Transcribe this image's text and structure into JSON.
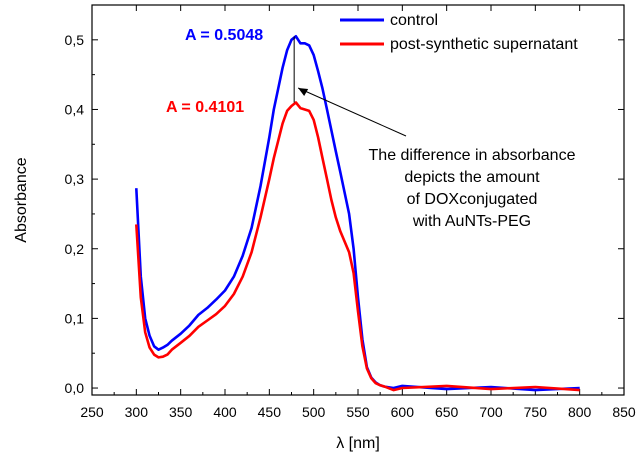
{
  "chart_data": {
    "type": "line",
    "xlabel": "λ [nm]",
    "ylabel": "Absorbance",
    "xlim": [
      250,
      850
    ],
    "ylim": [
      -0.01,
      0.55
    ],
    "xticks": [
      250,
      300,
      350,
      400,
      450,
      500,
      550,
      600,
      650,
      700,
      750,
      800,
      850
    ],
    "yticks": [
      0.0,
      0.1,
      0.2,
      0.3,
      0.4,
      0.5
    ],
    "ytick_labels": [
      "0,0",
      "0,1",
      "0,2",
      "0,3",
      "0,4",
      "0,5"
    ],
    "legend_position": "top-right",
    "series": [
      {
        "name": "control",
        "color": "#0000ff",
        "x": [
          300,
          305,
          310,
          315,
          320,
          325,
          330,
          335,
          340,
          350,
          360,
          370,
          380,
          390,
          400,
          410,
          420,
          430,
          440,
          450,
          455,
          460,
          465,
          470,
          475,
          480,
          485,
          490,
          495,
          500,
          505,
          510,
          515,
          520,
          525,
          530,
          535,
          540,
          545,
          550,
          555,
          560,
          565,
          570,
          575,
          580,
          590,
          600,
          650,
          700,
          750,
          800
        ],
        "y": [
          0.287,
          0.16,
          0.1,
          0.075,
          0.06,
          0.055,
          0.058,
          0.062,
          0.068,
          0.078,
          0.09,
          0.105,
          0.115,
          0.127,
          0.14,
          0.16,
          0.19,
          0.23,
          0.29,
          0.36,
          0.4,
          0.43,
          0.46,
          0.485,
          0.5,
          0.505,
          0.495,
          0.495,
          0.492,
          0.478,
          0.455,
          0.43,
          0.4,
          0.37,
          0.34,
          0.31,
          0.28,
          0.25,
          0.2,
          0.13,
          0.07,
          0.03,
          0.015,
          0.008,
          0.004,
          0.002,
          0.0,
          0.0,
          0.0,
          0.0,
          0.0,
          0.0
        ]
      },
      {
        "name": "post-synthetic supernatant",
        "color": "#ff0000",
        "x": [
          300,
          305,
          310,
          315,
          320,
          325,
          330,
          335,
          340,
          350,
          360,
          370,
          380,
          390,
          400,
          410,
          420,
          430,
          440,
          450,
          455,
          460,
          465,
          470,
          475,
          480,
          485,
          490,
          495,
          500,
          505,
          510,
          515,
          520,
          525,
          530,
          535,
          540,
          545,
          550,
          555,
          560,
          565,
          570,
          575,
          580,
          590,
          600,
          650,
          700,
          750,
          800
        ],
        "y": [
          0.235,
          0.13,
          0.08,
          0.058,
          0.048,
          0.044,
          0.045,
          0.048,
          0.055,
          0.065,
          0.075,
          0.088,
          0.097,
          0.106,
          0.118,
          0.135,
          0.16,
          0.195,
          0.245,
          0.3,
          0.33,
          0.355,
          0.38,
          0.398,
          0.405,
          0.41,
          0.402,
          0.4,
          0.398,
          0.385,
          0.36,
          0.33,
          0.3,
          0.27,
          0.245,
          0.225,
          0.21,
          0.195,
          0.165,
          0.11,
          0.06,
          0.028,
          0.014,
          0.007,
          0.004,
          0.002,
          0.0,
          0.0,
          0.0,
          0.0,
          0.0,
          0.0
        ]
      }
    ],
    "annotations": {
      "value_control": "A = 0.5048",
      "value_supernatant": "A = 0.4101",
      "note_lines": [
        "The difference in absorbance",
        "depicts the amount",
        "of DOXconjugated",
        "with AuNTs-PEG"
      ],
      "marker_x": 478,
      "marker_y_top": 0.5048,
      "marker_y_bottom": 0.4101
    }
  }
}
